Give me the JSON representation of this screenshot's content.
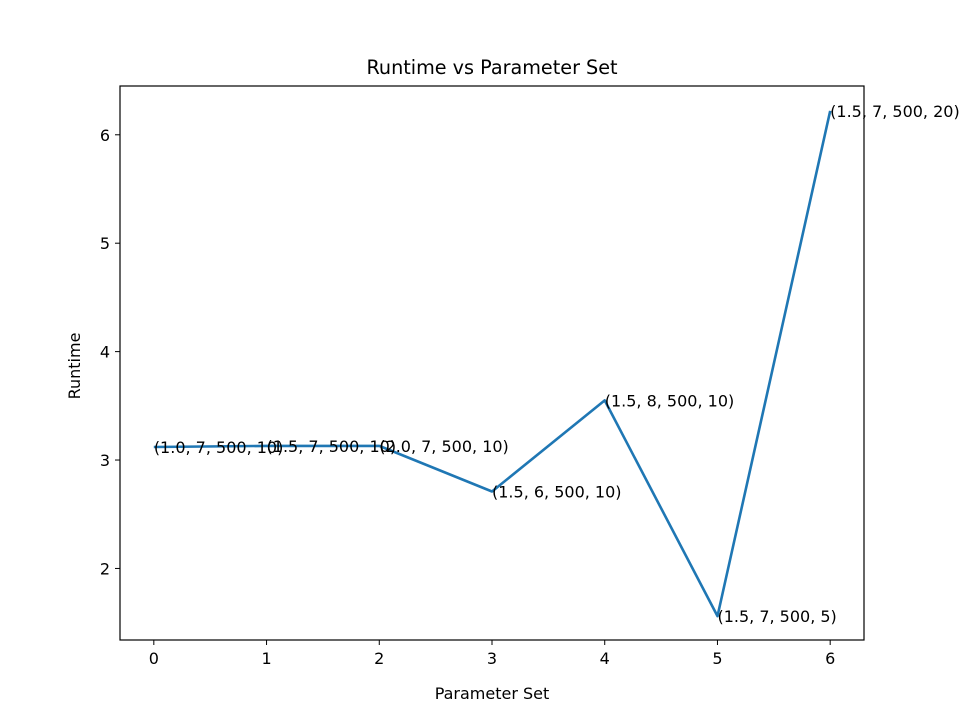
{
  "chart_data": {
    "type": "line",
    "title": "Runtime vs Parameter Set",
    "xlabel": "Parameter Set",
    "ylabel": "Runtime",
    "x": [
      0,
      1,
      2,
      3,
      4,
      5,
      6
    ],
    "xlim": [
      -0.3,
      6.3
    ],
    "ylim": [
      1.34,
      6.45
    ],
    "xticks": [
      "0",
      "1",
      "2",
      "3",
      "4",
      "5",
      "6"
    ],
    "yticks": [
      2,
      3,
      4,
      5,
      6
    ],
    "ytick_labels": [
      "2",
      "3",
      "4",
      "5",
      "6"
    ],
    "grid": false,
    "series": [
      {
        "values": [
          3.12,
          3.13,
          3.13,
          2.71,
          3.55,
          1.56,
          6.22
        ],
        "labels": [
          "(1.0, 7, 500, 10)",
          "(1.5, 7, 500, 10)",
          "(2.0, 7, 500, 10)",
          "(1.5, 6, 500, 10)",
          "(1.5, 8, 500, 10)",
          "(1.5, 7, 500, 5)",
          "(1.5, 7, 500, 20)"
        ]
      }
    ],
    "colors": {
      "line": "#1f77b4"
    }
  }
}
